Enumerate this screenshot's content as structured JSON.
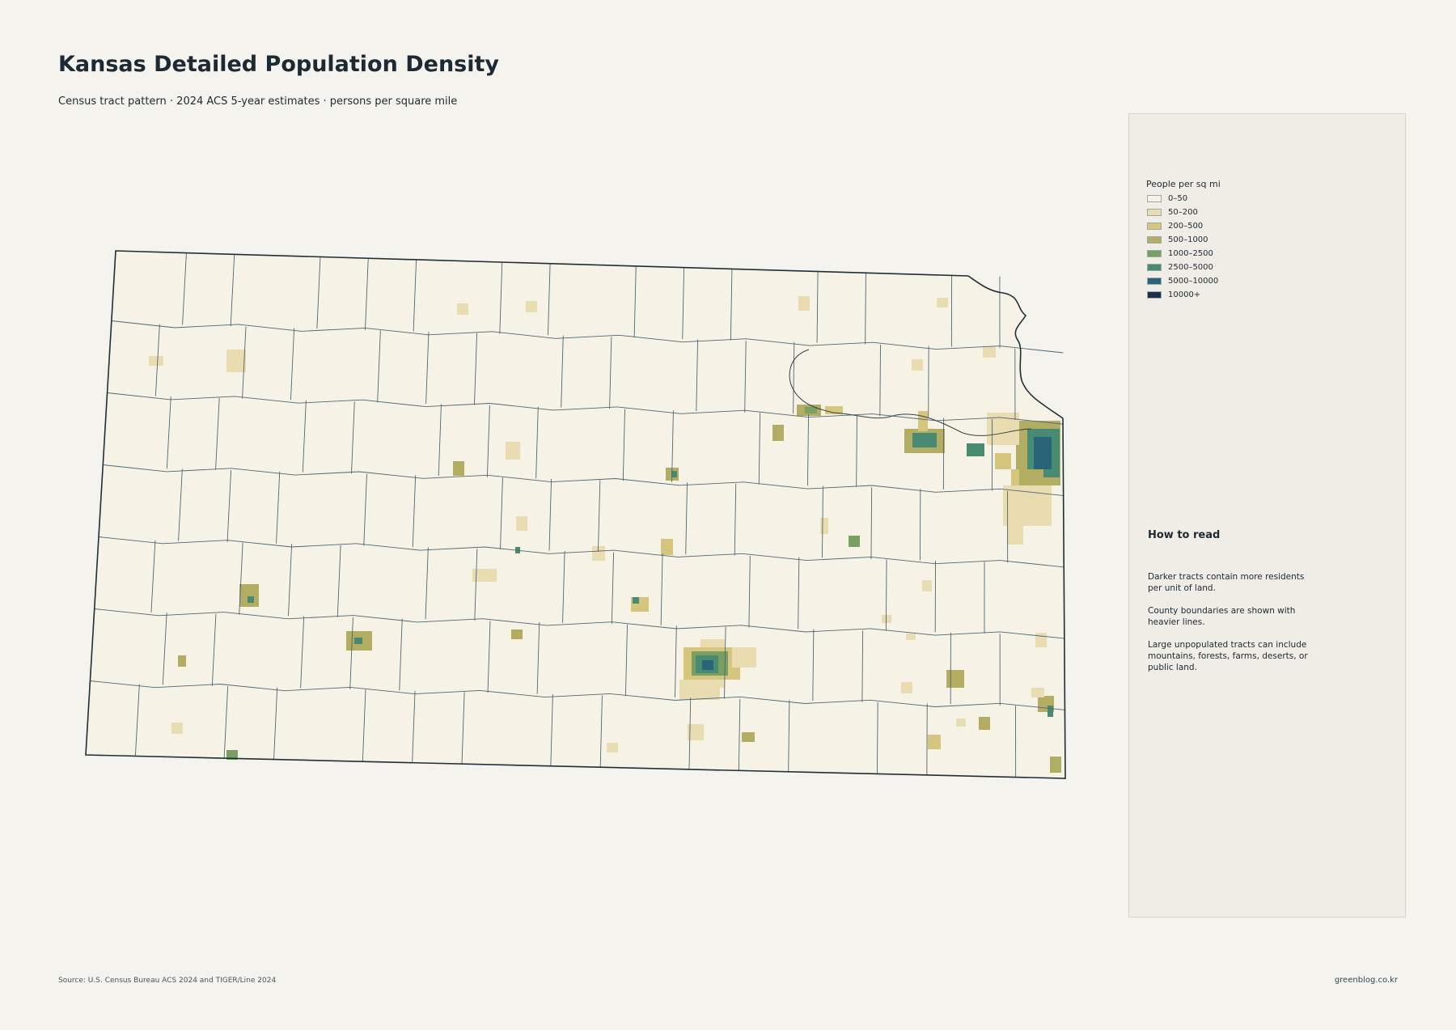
{
  "header": {
    "title": "Kansas Detailed Population Density",
    "subtitle": "Census tract pattern · 2024 ACS 5-year estimates · persons per square mile"
  },
  "legend": {
    "title": "People per sq mi",
    "items": [
      {
        "label": "0–50",
        "color": "#f6f3e6"
      },
      {
        "label": "50–200",
        "color": "#e8dcb0"
      },
      {
        "label": "200–500",
        "color": "#d6c57d"
      },
      {
        "label": "500–1000",
        "color": "#b3ad63"
      },
      {
        "label": "1000–2500",
        "color": "#7b9f63"
      },
      {
        "label": "2500–5000",
        "color": "#488a72"
      },
      {
        "label": "5000–10000",
        "color": "#2a6479"
      },
      {
        "label": "10000+",
        "color": "#1c2e48"
      }
    ]
  },
  "notes": {
    "title": "How to read",
    "paragraphs": [
      "Darker tracts contain more residents per unit of land.",
      "County boundaries are shown with heavier lines.",
      "Large unpopulated tracts can include mountains, forests, farms, deserts, or public land."
    ]
  },
  "footer": {
    "source": "Source: U.S. Census Bureau ACS 2024 and TIGER/Line 2024",
    "credit": "greenblog.co.kr"
  }
}
